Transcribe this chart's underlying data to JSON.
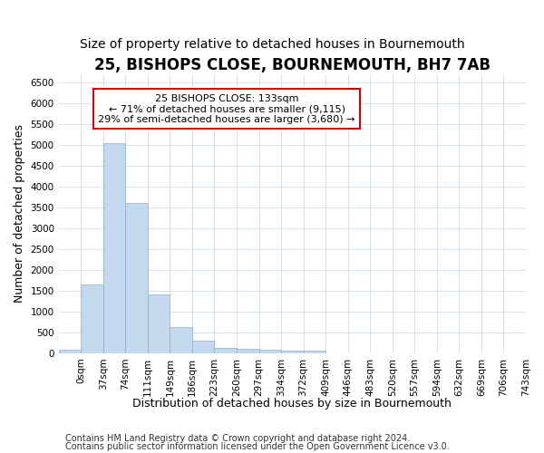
{
  "title": "25, BISHOPS CLOSE, BOURNEMOUTH, BH7 7AB",
  "subtitle": "Size of property relative to detached houses in Bournemouth",
  "xlabel": "Distribution of detached houses by size in Bournemouth",
  "ylabel": "Number of detached properties",
  "bar_labels": [
    "0sqm",
    "37sqm",
    "74sqm",
    "111sqm",
    "149sqm",
    "186sqm",
    "223sqm",
    "260sqm",
    "297sqm",
    "334sqm",
    "372sqm",
    "409sqm",
    "446sqm",
    "483sqm",
    "520sqm",
    "557sqm",
    "594sqm",
    "632sqm",
    "669sqm",
    "706sqm",
    "743sqm"
  ],
  "bar_values": [
    75,
    1650,
    5050,
    3600,
    1400,
    625,
    300,
    135,
    100,
    75,
    50,
    55,
    0,
    0,
    0,
    0,
    0,
    0,
    0,
    0,
    0
  ],
  "bar_color": "#c5d9ee",
  "bar_edge_color": "#8ab0d0",
  "ylim": [
    0,
    6700
  ],
  "yticks": [
    0,
    500,
    1000,
    1500,
    2000,
    2500,
    3000,
    3500,
    4000,
    4500,
    5000,
    5500,
    6000,
    6500
  ],
  "annotation_text": "25 BISHOPS CLOSE: 133sqm\n← 71% of detached houses are smaller (9,115)\n29% of semi-detached houses are larger (3,680) →",
  "annotation_box_color": "#cc0000",
  "footer1": "Contains HM Land Registry data © Crown copyright and database right 2024.",
  "footer2": "Contains public sector information licensed under the Open Government Licence v3.0.",
  "background_color": "#ffffff",
  "grid_color": "#c8d4e8",
  "title_fontsize": 12,
  "subtitle_fontsize": 10,
  "axis_label_fontsize": 9,
  "tick_fontsize": 7.5,
  "footer_fontsize": 7
}
